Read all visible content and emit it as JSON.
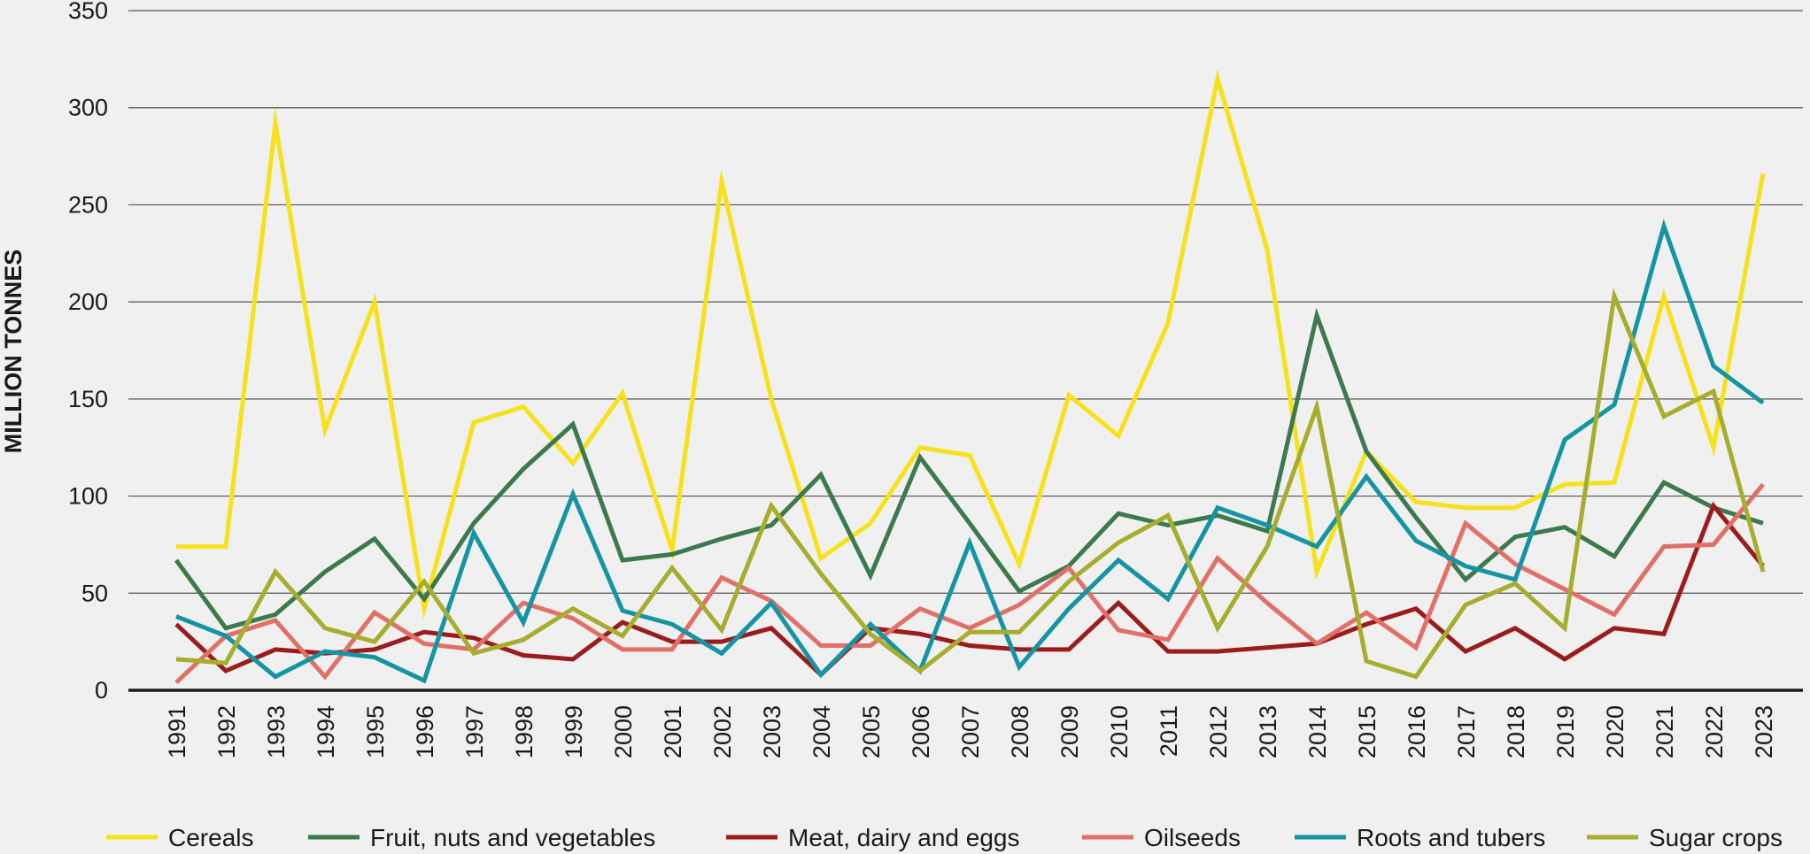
{
  "chart_data": {
    "type": "line",
    "title": "",
    "xlabel": "",
    "ylabel": "MILLION TONNES",
    "ylim": [
      0,
      350
    ],
    "yticks": [
      0,
      50,
      100,
      150,
      200,
      250,
      300,
      350
    ],
    "grid": true,
    "legend_position": "bottom",
    "categories": [
      "1991",
      "1992",
      "1993",
      "1994",
      "1995",
      "1996",
      "1997",
      "1998",
      "1999",
      "2000",
      "2001",
      "2002",
      "2003",
      "2004",
      "2005",
      "2006",
      "2007",
      "2008",
      "2009",
      "2010",
      "2011",
      "2012",
      "2013",
      "2014",
      "2015",
      "2016",
      "2017",
      "2018",
      "2019",
      "2020",
      "2021",
      "2022",
      "2023"
    ],
    "series": [
      {
        "name": "Cereals",
        "color": "#f7e11b",
        "values": [
          74,
          74,
          292,
          134,
          200,
          42,
          138,
          146,
          117,
          153,
          72,
          262,
          150,
          68,
          86,
          125,
          121,
          65,
          152,
          131,
          189,
          315,
          227,
          61,
          123,
          97,
          94,
          94,
          106,
          107,
          203,
          125,
          266
        ]
      },
      {
        "name": "Fruit, nuts and vegetables",
        "color": "#3c7a4e",
        "values": [
          67,
          32,
          39,
          61,
          78,
          47,
          86,
          114,
          137,
          67,
          70,
          78,
          85,
          111,
          59,
          120,
          86,
          51,
          64,
          91,
          85,
          90,
          82,
          193,
          123,
          89,
          57,
          79,
          84,
          69,
          107,
          94,
          86
        ]
      },
      {
        "name": "Meat, dairy and eggs",
        "color": "#9b1c1c",
        "values": [
          34,
          10,
          21,
          19,
          21,
          30,
          27,
          18,
          16,
          35,
          25,
          25,
          32,
          8,
          32,
          29,
          23,
          21,
          21,
          45,
          20,
          20,
          22,
          24,
          34,
          42,
          20,
          32,
          16,
          32,
          29,
          95,
          64
        ]
      },
      {
        "name": "Oilseeds",
        "color": "#e07068",
        "values": [
          4,
          28,
          36,
          7,
          40,
          24,
          21,
          45,
          37,
          21,
          21,
          58,
          46,
          23,
          23,
          42,
          32,
          44,
          63,
          31,
          26,
          68,
          45,
          24,
          40,
          22,
          86,
          65,
          52,
          39,
          74,
          75,
          106
        ]
      },
      {
        "name": "Roots and tubers",
        "color": "#1595a3",
        "values": [
          38,
          28,
          7,
          20,
          17,
          5,
          81,
          35,
          101,
          41,
          34,
          19,
          45,
          8,
          34,
          10,
          76,
          12,
          42,
          67,
          47,
          94,
          85,
          74,
          110,
          77,
          64,
          57,
          129,
          147,
          239,
          167,
          148
        ]
      },
      {
        "name": "Sugar crops",
        "color": "#a7ad2e",
        "values": [
          16,
          14,
          61,
          32,
          25,
          56,
          19,
          26,
          42,
          28,
          63,
          31,
          95,
          60,
          29,
          10,
          30,
          30,
          56,
          76,
          90,
          32,
          74,
          146,
          15,
          7,
          44,
          55,
          32,
          203,
          141,
          154,
          61
        ]
      }
    ]
  }
}
